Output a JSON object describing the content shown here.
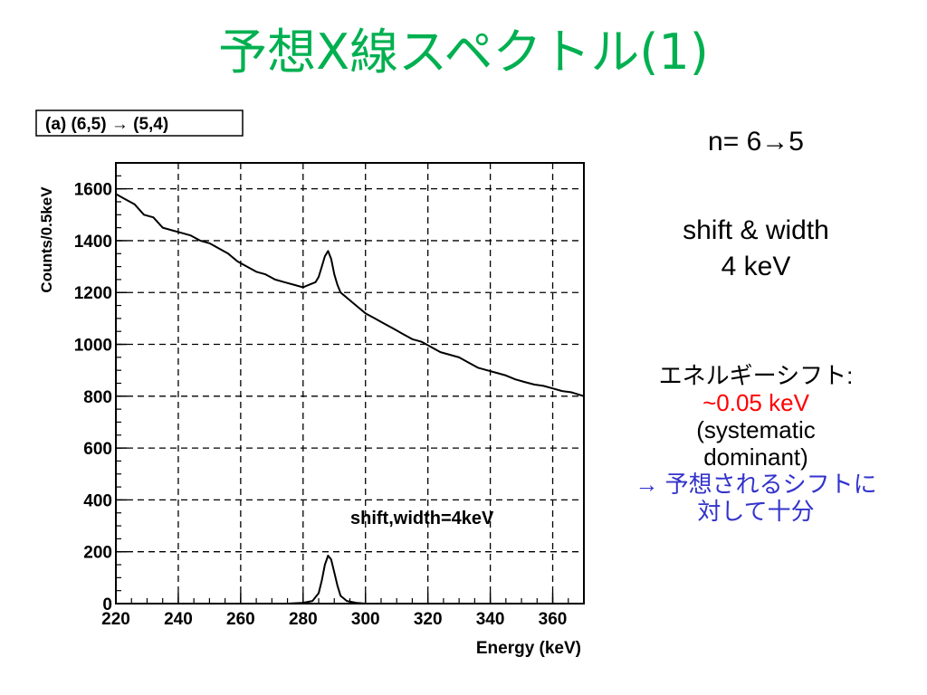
{
  "slide": {
    "title": "予想X線スペクトル(1)"
  },
  "right_panel": {
    "transition": "n= 6→5",
    "shift_line1": "shift & width",
    "shift_line2": "4 keV",
    "energy_shift_label": "エネルギーシフト:",
    "energy_shift_value": "~0.05 keV",
    "systematic_line1": "(systematic",
    "systematic_line2": "dominant)",
    "conclusion_line1": "→ 予想されるシフトに",
    "conclusion_line2": "対して十分"
  },
  "colors": {
    "title": "#00b050",
    "energy_value": "#ff0000",
    "conclusion": "#3333cc"
  },
  "chart_data": {
    "type": "line",
    "title": "(a) (6,5) → (5,4)",
    "xlabel": "Energy (keV)",
    "ylabel": "Counts/0.5keV",
    "xlim": [
      220,
      370
    ],
    "ylim": [
      0,
      1700
    ],
    "x_ticks": [
      220,
      240,
      260,
      280,
      300,
      320,
      340,
      360
    ],
    "y_ticks": [
      0,
      200,
      400,
      600,
      800,
      1000,
      1200,
      1400,
      1600
    ],
    "grid": true,
    "annotation": "shift,width=4keV",
    "series": [
      {
        "x": [
          220,
          223,
          226,
          229,
          232,
          235,
          238,
          241,
          244,
          247,
          250,
          253,
          256,
          259,
          262,
          265,
          268,
          271,
          274,
          277,
          280,
          282,
          284,
          285,
          286,
          287,
          288,
          289,
          290,
          291,
          292,
          294,
          297,
          300,
          303,
          306,
          309,
          312,
          315,
          318,
          321,
          324,
          327,
          330,
          333,
          336,
          339,
          342,
          345,
          348,
          351,
          354,
          357,
          360,
          363,
          366,
          370
        ],
        "y": [
          1580,
          1560,
          1540,
          1500,
          1490,
          1450,
          1440,
          1430,
          1420,
          1400,
          1390,
          1370,
          1350,
          1320,
          1300,
          1280,
          1270,
          1250,
          1240,
          1230,
          1220,
          1230,
          1240,
          1260,
          1300,
          1340,
          1360,
          1330,
          1270,
          1230,
          1200,
          1180,
          1150,
          1120,
          1100,
          1080,
          1060,
          1040,
          1020,
          1010,
          990,
          970,
          960,
          950,
          930,
          910,
          900,
          890,
          880,
          865,
          855,
          845,
          840,
          830,
          820,
          815,
          800
        ]
      },
      {
        "x": [
          275,
          280,
          283,
          285,
          286,
          287,
          288,
          289,
          290,
          291,
          292,
          294,
          297,
          300,
          305,
          310
        ],
        "y": [
          0,
          3,
          10,
          40,
          90,
          150,
          185,
          170,
          120,
          70,
          30,
          10,
          3,
          0,
          0,
          0
        ]
      }
    ]
  }
}
